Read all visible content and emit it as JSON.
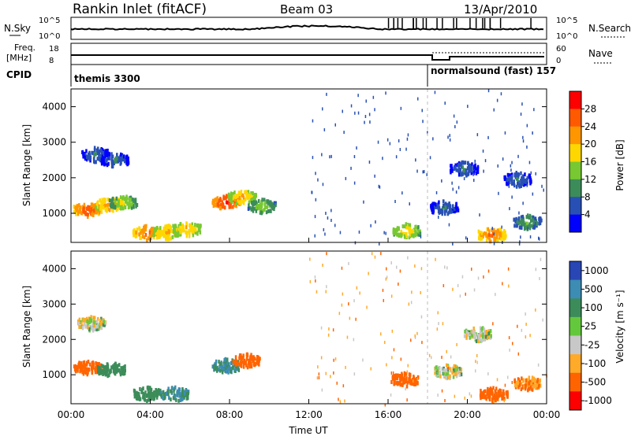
{
  "header": {
    "station": "Rankin Inlet (fitACF)",
    "beam": "Beam 03",
    "date": "13/Apr/2010"
  },
  "status_panels": {
    "nsky_label": "N.Sky",
    "nsky_ticks": [
      "10^5",
      "10^0"
    ],
    "nsearch_label": "N.Search",
    "nsearch_ticks": [
      "10^5",
      "10^0"
    ],
    "freq_label_1": "Freq.",
    "freq_label_2": "[MHz]",
    "freq_ticks": [
      "18",
      "8"
    ],
    "nave_label": "Nave",
    "nave_ticks": [
      "60",
      "0"
    ],
    "cpid_label": "CPID",
    "cpid_segments": [
      {
        "name": "themis 3300",
        "start_hour": 0
      },
      {
        "name": "normalsound (fast) 157",
        "start_hour": 18.1
      }
    ]
  },
  "chart_data": [
    {
      "type": "heatmap",
      "title": "",
      "xlabel": "",
      "ylabel": "Slant Range [km]",
      "x_ticks": [
        "00:00",
        "04:00",
        "08:00",
        "12:00",
        "16:00",
        "20:00",
        "00:00"
      ],
      "y_ticks": [
        "1000",
        "2000",
        "3000",
        "4000"
      ],
      "xlim_hours": [
        0,
        24
      ],
      "ylim_km": [
        180,
        4500
      ],
      "colorbar_label": "Power [dB]",
      "colorbar_ticks": [
        "28",
        "24",
        "20",
        "16",
        "12",
        "8",
        "4"
      ],
      "colorbar_colors": [
        "#ff0000",
        "#ff5a00",
        "#ff9600",
        "#ffd700",
        "#78c832",
        "#3c8c5a",
        "#2850b4",
        "#0000ff"
      ],
      "blobs": [
        {
          "t": 0.8,
          "r": 1150,
          "intensity": 26
        },
        {
          "t": 1.9,
          "r": 1300,
          "intensity": 22
        },
        {
          "t": 2.6,
          "r": 1350,
          "intensity": 16
        },
        {
          "t": 1.2,
          "r": 2700,
          "intensity": 8
        },
        {
          "t": 2.2,
          "r": 2550,
          "intensity": 8
        },
        {
          "t": 3.8,
          "r": 500,
          "intensity": 24
        },
        {
          "t": 4.8,
          "r": 520,
          "intensity": 20
        },
        {
          "t": 5.8,
          "r": 600,
          "intensity": 20
        },
        {
          "t": 7.8,
          "r": 1350,
          "intensity": 28
        },
        {
          "t": 8.6,
          "r": 1500,
          "intensity": 20
        },
        {
          "t": 9.6,
          "r": 1250,
          "intensity": 14
        },
        {
          "t": 16.9,
          "r": 550,
          "intensity": 18
        },
        {
          "t": 18.8,
          "r": 1200,
          "intensity": 8
        },
        {
          "t": 19.8,
          "r": 2300,
          "intensity": 8
        },
        {
          "t": 21.2,
          "r": 450,
          "intensity": 24
        },
        {
          "t": 22.5,
          "r": 2000,
          "intensity": 8
        },
        {
          "t": 23.0,
          "r": 800,
          "intensity": 12
        }
      ]
    },
    {
      "type": "heatmap",
      "title": "",
      "xlabel": "Time UT",
      "ylabel": "Slant Range [km]",
      "x_ticks": [
        "00:00",
        "04:00",
        "08:00",
        "12:00",
        "16:00",
        "20:00",
        "00:00"
      ],
      "y_ticks": [
        "1000",
        "2000",
        "3000",
        "4000"
      ],
      "xlim_hours": [
        0,
        24
      ],
      "ylim_km": [
        180,
        4500
      ],
      "colorbar_label": "Velocity [m s⁻¹]",
      "colorbar_ticks": [
        "1000",
        "500",
        "100",
        "25",
        "-25",
        "-100",
        "-500",
        "-1000"
      ],
      "colorbar_colors": [
        "#2846b4",
        "#3c8cb4",
        "#3c8c5a",
        "#64c83c",
        "#c8c8c8",
        "#ffaa28",
        "#ff6400",
        "#ff0000"
      ],
      "blobs": [
        {
          "t": 0.8,
          "r": 1250,
          "velocity": -300
        },
        {
          "t": 2.0,
          "r": 1200,
          "velocity": 150
        },
        {
          "t": 1.0,
          "r": 2500,
          "velocity": 0
        },
        {
          "t": 3.8,
          "r": 500,
          "velocity": 150
        },
        {
          "t": 5.2,
          "r": 500,
          "velocity": 300
        },
        {
          "t": 7.8,
          "r": 1300,
          "velocity": 300
        },
        {
          "t": 8.8,
          "r": 1450,
          "velocity": -200
        },
        {
          "t": 16.8,
          "r": 900,
          "velocity": -200
        },
        {
          "t": 19.0,
          "r": 1150,
          "velocity": 0
        },
        {
          "t": 20.5,
          "r": 2200,
          "velocity": 0
        },
        {
          "t": 21.3,
          "r": 500,
          "velocity": -300
        },
        {
          "t": 23.0,
          "r": 800,
          "velocity": -100
        }
      ]
    }
  ]
}
